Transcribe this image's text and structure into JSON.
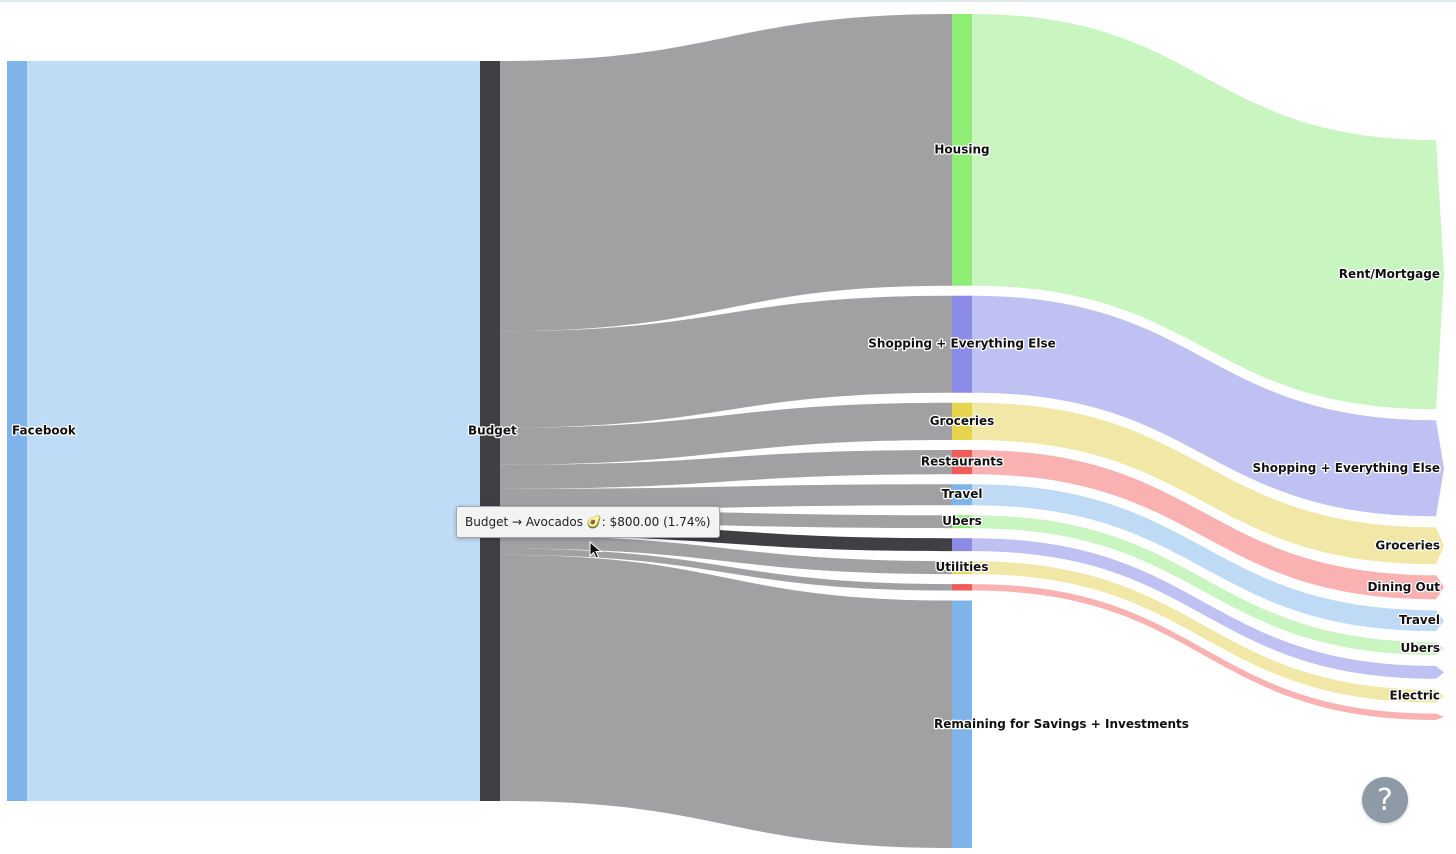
{
  "chart_data": {
    "type": "sankey",
    "title": "",
    "nodes": [
      {
        "id": "facebook",
        "label": "Facebook",
        "color": "#7eb4ea"
      },
      {
        "id": "budget",
        "label": "Budget",
        "color": "#3f3f44"
      },
      {
        "id": "housing",
        "label": "Housing",
        "color": "#8ded74"
      },
      {
        "id": "shopping",
        "label": "Shopping + Everything Else",
        "color": "#8b8be8"
      },
      {
        "id": "groceries",
        "label": "Groceries",
        "color": "#e6d54c"
      },
      {
        "id": "restaurants",
        "label": "Restaurants",
        "color": "#f05c5c"
      },
      {
        "id": "travel",
        "label": "Travel",
        "color": "#7eb4ea"
      },
      {
        "id": "ubers",
        "label": "Ubers",
        "color": "#8ded74"
      },
      {
        "id": "avocados",
        "label": "",
        "color": "#8b8be8"
      },
      {
        "id": "utilities",
        "label": "Utilities",
        "color": "#e6d54c"
      },
      {
        "id": "misc",
        "label": "",
        "color": "#f05c5c"
      },
      {
        "id": "remaining",
        "label": "Remaining for Savings + Investments",
        "color": "#7eb4ea"
      },
      {
        "id": "rent",
        "label": "Rent/Mortgage",
        "color": "#c8f5c0"
      },
      {
        "id": "shopping_out",
        "label": "Shopping + Everything Else",
        "color": "#bfc1f2"
      },
      {
        "id": "groceries_out",
        "label": "Groceries",
        "color": "#f1e8a8"
      },
      {
        "id": "dining_out",
        "label": "Dining Out",
        "color": "#f9b1b1"
      },
      {
        "id": "travel_out",
        "label": "Travel",
        "color": "#bfdaf5"
      },
      {
        "id": "ubers_out",
        "label": "Ubers",
        "color": "#c8f5c0"
      },
      {
        "id": "avocados_out",
        "label": "",
        "color": "#bfc1f2"
      },
      {
        "id": "electric",
        "label": "Electric",
        "color": "#f1e8a8"
      },
      {
        "id": "misc_out",
        "label": "",
        "color": "#f9b1b1"
      }
    ],
    "links": [
      {
        "source": "facebook",
        "target": "budget",
        "value": 46000,
        "color": "#bedcf5"
      },
      {
        "source": "budget",
        "target": "housing",
        "value": 16800,
        "color": "#a1a1a3"
      },
      {
        "source": "budget",
        "target": "shopping",
        "value": 6000,
        "color": "#a1a1a3"
      },
      {
        "source": "budget",
        "target": "groceries",
        "value": 2300,
        "color": "#a1a1a3"
      },
      {
        "source": "budget",
        "target": "restaurants",
        "value": 1500,
        "color": "#a1a1a3"
      },
      {
        "source": "budget",
        "target": "travel",
        "value": 1300,
        "color": "#a1a1a3"
      },
      {
        "source": "budget",
        "target": "ubers",
        "value": 800,
        "color": "#a1a1a3"
      },
      {
        "source": "budget",
        "target": "avocados",
        "value": 800,
        "color": "#3f3f44"
      },
      {
        "source": "budget",
        "target": "utilities",
        "value": 800,
        "color": "#a1a1a3"
      },
      {
        "source": "budget",
        "target": "misc",
        "value": 400,
        "color": "#a1a1a3"
      },
      {
        "source": "budget",
        "target": "remaining",
        "value": 15300,
        "color": "#a1a1a3"
      },
      {
        "source": "housing",
        "target": "rent",
        "value": 16800,
        "color": "#c8f5c0"
      },
      {
        "source": "shopping",
        "target": "shopping_out",
        "value": 6000,
        "color": "#bfc1f2"
      },
      {
        "source": "groceries",
        "target": "groceries_out",
        "value": 2300,
        "color": "#f1e8a8"
      },
      {
        "source": "restaurants",
        "target": "dining_out",
        "value": 1500,
        "color": "#f9b1b1"
      },
      {
        "source": "travel",
        "target": "travel_out",
        "value": 1300,
        "color": "#bfdaf5"
      },
      {
        "source": "ubers",
        "target": "ubers_out",
        "value": 800,
        "color": "#c8f5c0"
      },
      {
        "source": "avocados",
        "target": "avocados_out",
        "value": 800,
        "color": "#bfc1f2"
      },
      {
        "source": "utilities",
        "target": "electric",
        "value": 800,
        "color": "#f1e8a8"
      },
      {
        "source": "misc",
        "target": "misc_out",
        "value": 400,
        "color": "#f9b1b1"
      }
    ],
    "tooltip": {
      "source": "Budget",
      "arrow": "→",
      "target": "Avocados 🥑",
      "value": "$800.00",
      "percent": "(1.74%)"
    }
  },
  "help_button": {
    "label": "?",
    "icon": "question-mark-icon"
  }
}
